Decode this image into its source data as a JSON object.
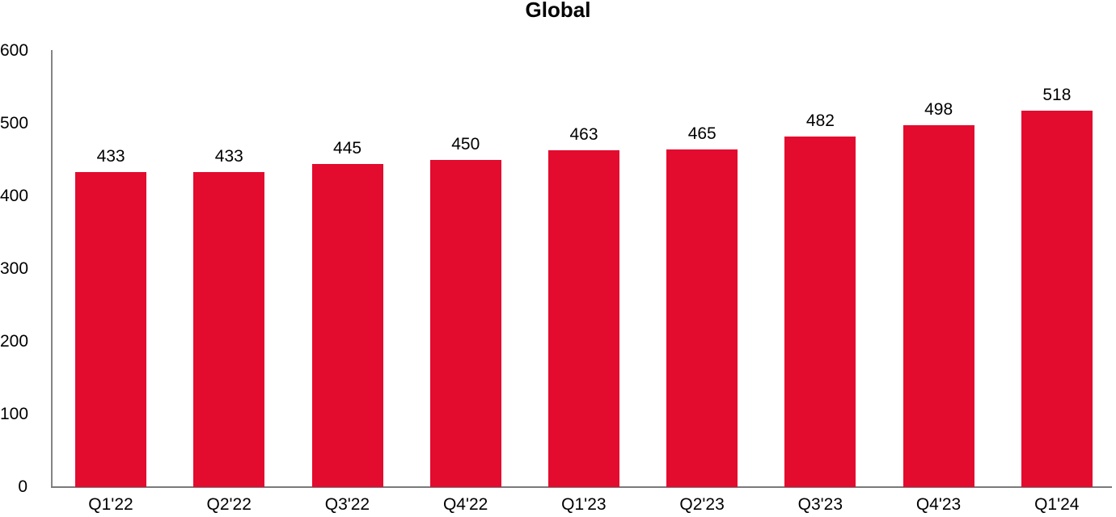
{
  "chart_data": {
    "type": "bar",
    "title": "Global",
    "categories": [
      "Q1'22",
      "Q2'22",
      "Q3'22",
      "Q4'22",
      "Q1'23",
      "Q2'23",
      "Q3'23",
      "Q4'23",
      "Q1'24"
    ],
    "values": [
      433,
      433,
      445,
      450,
      463,
      465,
      482,
      498,
      518
    ],
    "yticks": [
      0,
      100,
      200,
      300,
      400,
      500,
      600
    ],
    "ylim": [
      0,
      600
    ],
    "xlabel": "",
    "ylabel": "",
    "grid": false,
    "legend_position": "none",
    "data_labels": true,
    "colors": {
      "bar": "#E30B2E",
      "axis": "#808080",
      "text": "#000000",
      "background": "#FFFFFF"
    }
  }
}
